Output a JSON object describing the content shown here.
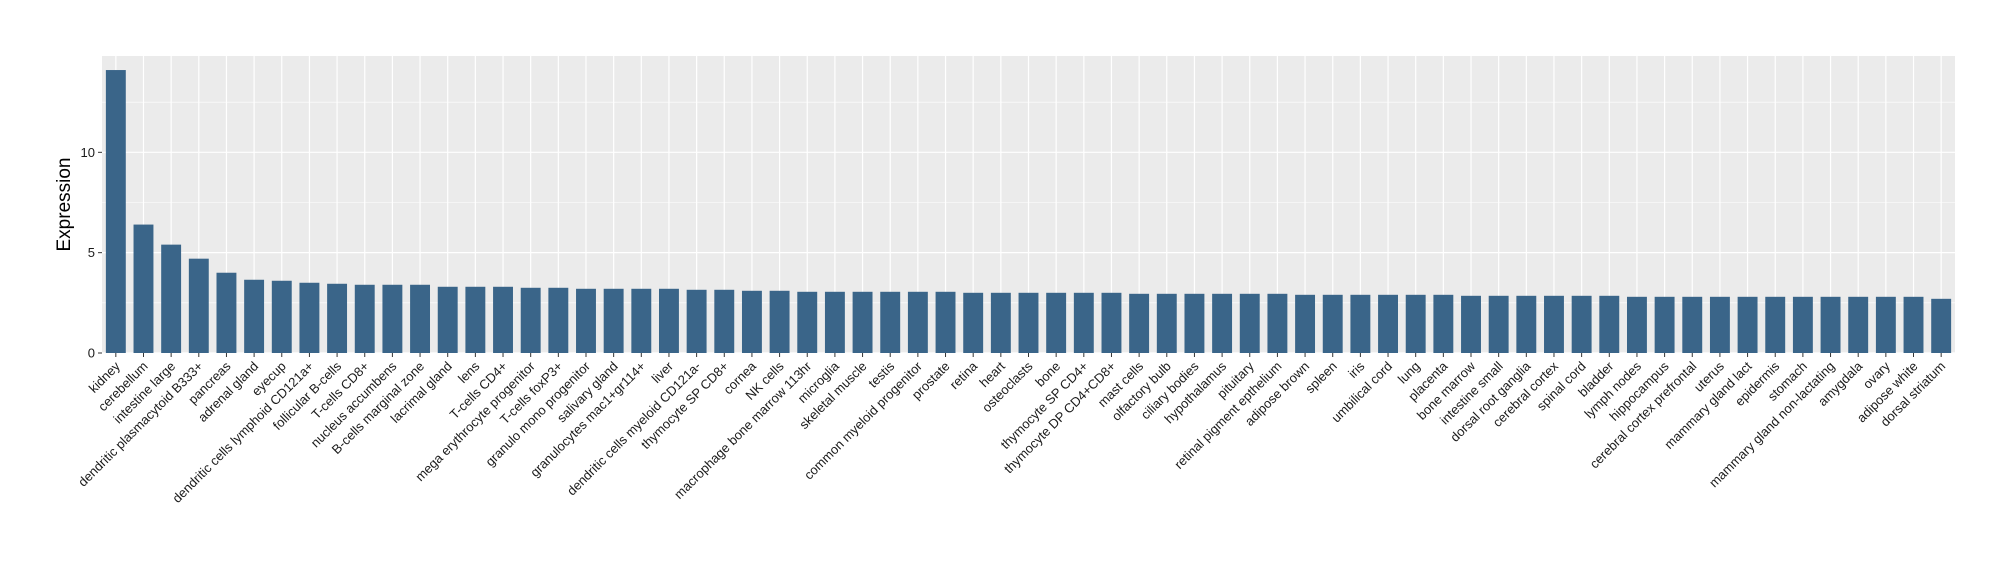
{
  "chart_data": {
    "type": "bar",
    "title": "",
    "xlabel": "",
    "ylabel": "Expression",
    "ylim": [
      0,
      14.8
    ],
    "yticks": [
      0,
      5,
      10
    ],
    "grid": true,
    "bar_color": "#3a6589",
    "panel_color": "#ebebeb",
    "grid_color": "#ffffff",
    "categories": [
      "kidney",
      "cerebellum",
      "intestine large",
      "dendritic plasmacytoid B333+",
      "pancreas",
      "adrenal gland",
      "eyecup",
      "dendritic cells lymphoid CD121a+",
      "follicular B-cells",
      "T-cells CD8+",
      "nucleus accumbens",
      "B-cells marginal zone",
      "lacrimal gland",
      "lens",
      "T-cells CD4+",
      "mega erythrocyte progenitor",
      "T-cells foxP3+",
      "granulo mono progenitor",
      "salivary gland",
      "granulocytes mac1+gr114+",
      "liver",
      "dendritic cells myeloid CD121a-",
      "thymocyte SP CD8+",
      "cornea",
      "NK cells",
      "macrophage bone marrow 113hr",
      "microglia",
      "skeletal muscle",
      "testis",
      "common myeloid progenitor",
      "prostate",
      "retina",
      "heart",
      "osteoclasts",
      "bone",
      "thymocyte SP CD4+",
      "thymocyte DP CD4+CD8+",
      "mast cells",
      "olfactory bulb",
      "ciliary bodies",
      "hypothalamus",
      "pituitary",
      "retinal pigment epthelium",
      "adipose brown",
      "spleen",
      "iris",
      "umbilical cord",
      "lung",
      "placenta",
      "bone marrow",
      "intestine small",
      "dorsal root ganglia",
      "cerebral cortex",
      "spinal cord",
      "bladder",
      "lymph nodes",
      "hippocampus",
      "cerebral cortex prefrontal",
      "uterus",
      "mammary gland lact",
      "epidermis",
      "stomach",
      "mammary gland non-lactating",
      "amygdala",
      "ovary",
      "adipose white",
      "dorsal striatum"
    ],
    "values": [
      14.1,
      6.4,
      5.4,
      4.7,
      4.0,
      3.65,
      3.6,
      3.5,
      3.45,
      3.4,
      3.4,
      3.4,
      3.3,
      3.3,
      3.3,
      3.25,
      3.25,
      3.2,
      3.2,
      3.2,
      3.2,
      3.15,
      3.15,
      3.1,
      3.1,
      3.05,
      3.05,
      3.05,
      3.05,
      3.05,
      3.05,
      3.0,
      3.0,
      3.0,
      3.0,
      3.0,
      3.0,
      2.95,
      2.95,
      2.95,
      2.95,
      2.95,
      2.95,
      2.9,
      2.9,
      2.9,
      2.9,
      2.9,
      2.9,
      2.85,
      2.85,
      2.85,
      2.85,
      2.85,
      2.85,
      2.8,
      2.8,
      2.8,
      2.8,
      2.8,
      2.8,
      2.8,
      2.8,
      2.8,
      2.8,
      2.8,
      2.7
    ]
  }
}
